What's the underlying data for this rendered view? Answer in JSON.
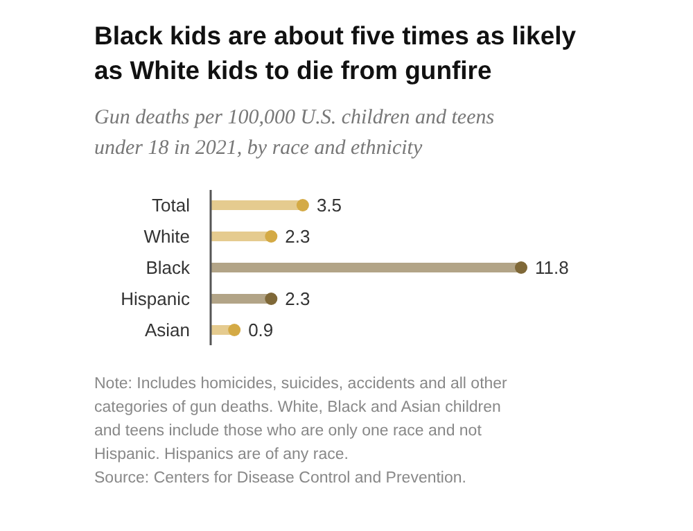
{
  "chart_data": {
    "type": "lollipop",
    "orientation": "horizontal",
    "title": "Black kids are about five times as likely as White kids to die from gunfire",
    "subtitle": "Gun deaths per 100,000 U.S. children and teens under 18 in 2021, by race and ethnicity",
    "categories": [
      "Total",
      "White",
      "Black",
      "Hispanic",
      "Asian"
    ],
    "values": [
      3.5,
      2.3,
      11.8,
      2.3,
      0.9
    ],
    "colors": [
      "#d4aa45",
      "#d4aa45",
      "#7f6838",
      "#7f6838",
      "#d4aa45"
    ],
    "data_labels": true,
    "annotations": [
      "Note: Includes homicides, suicides, accidents and all other categories of gun deaths. White, Black and Asian children and teens include those who are only one race and not Hispanic. Hispanics are of any race.",
      "Source: Centers for Disease Control and Prevention."
    ]
  }
}
